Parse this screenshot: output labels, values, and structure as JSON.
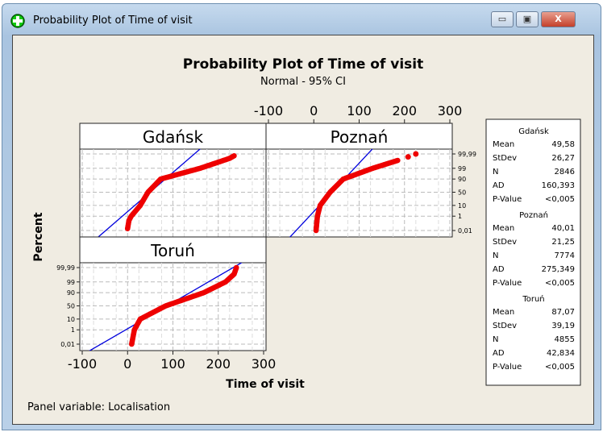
{
  "window": {
    "title": "Probability Plot of Time of visit",
    "minimize_icon": "minimize-icon",
    "maximize_icon": "maximize-icon",
    "close_label": "X"
  },
  "chart_data": {
    "type": "scatter",
    "title": "Probability Plot of Time of visit",
    "subtitle": "Normal - 95% CI",
    "xlabel": "Time of visit",
    "ylabel": "Percent",
    "xlim": [
      -100,
      300
    ],
    "xticks": [
      "-100",
      "0",
      "100",
      "200",
      "300"
    ],
    "yticks": [
      {
        "p": 99.99,
        "label": "99,99"
      },
      {
        "p": 99,
        "label": "99"
      },
      {
        "p": 90,
        "label": "90"
      },
      {
        "p": 50,
        "label": "50"
      },
      {
        "p": 10,
        "label": "10"
      },
      {
        "p": 1,
        "label": "1"
      },
      {
        "p": 0.01,
        "label": "0,01"
      }
    ],
    "grid": true,
    "footer": "Panel variable: Localisation",
    "panels": [
      {
        "name": "Gdańsk",
        "mean": 49.58,
        "stdev": 26.27,
        "curve": [
          [
            0,
            0.02
          ],
          [
            3,
            0.3
          ],
          [
            8,
            1
          ],
          [
            28,
            10
          ],
          [
            45,
            50
          ],
          [
            73,
            90
          ],
          [
            160,
            99
          ],
          [
            225,
            99.95
          ],
          [
            235,
            99.98
          ]
        ],
        "stats": [
          [
            "Mean",
            "49,58"
          ],
          [
            "StDev",
            "26,27"
          ],
          [
            "N",
            "2846"
          ],
          [
            "AD",
            "160,393"
          ],
          [
            "P-Value",
            "<0,005"
          ]
        ]
      },
      {
        "name": "Poznań",
        "mean": 40.01,
        "stdev": 21.25,
        "curve": [
          [
            5,
            0.01
          ],
          [
            8,
            1
          ],
          [
            14,
            10
          ],
          [
            36,
            50
          ],
          [
            65,
            90
          ],
          [
            130,
            99
          ],
          [
            185,
            99.9
          ]
        ],
        "outliers": [
          [
            208,
            99.97
          ],
          [
            225,
            99.99
          ]
        ],
        "stats": [
          [
            "Mean",
            "40,01"
          ],
          [
            "StDev",
            "21,25"
          ],
          [
            "N",
            "7774"
          ],
          [
            "AD",
            "275,349"
          ],
          [
            "P-Value",
            "<0,005"
          ]
        ]
      },
      {
        "name": "Toruń",
        "mean": 87.07,
        "stdev": 39.19,
        "curve": [
          [
            9,
            0.01
          ],
          [
            15,
            1
          ],
          [
            28,
            10
          ],
          [
            84,
            50
          ],
          [
            168,
            90
          ],
          [
            216,
            99
          ],
          [
            235,
            99.9
          ],
          [
            240,
            99.99
          ]
        ],
        "stats": [
          [
            "Mean",
            "87,07"
          ],
          [
            "StDev",
            "39,19"
          ],
          [
            "N",
            "4855"
          ],
          [
            "AD",
            "42,834"
          ],
          [
            "P-Value",
            "<0,005"
          ]
        ]
      }
    ],
    "colors": {
      "points": "#ee0000",
      "fit": "#0000dd",
      "grid": "#bbbbbb"
    }
  }
}
